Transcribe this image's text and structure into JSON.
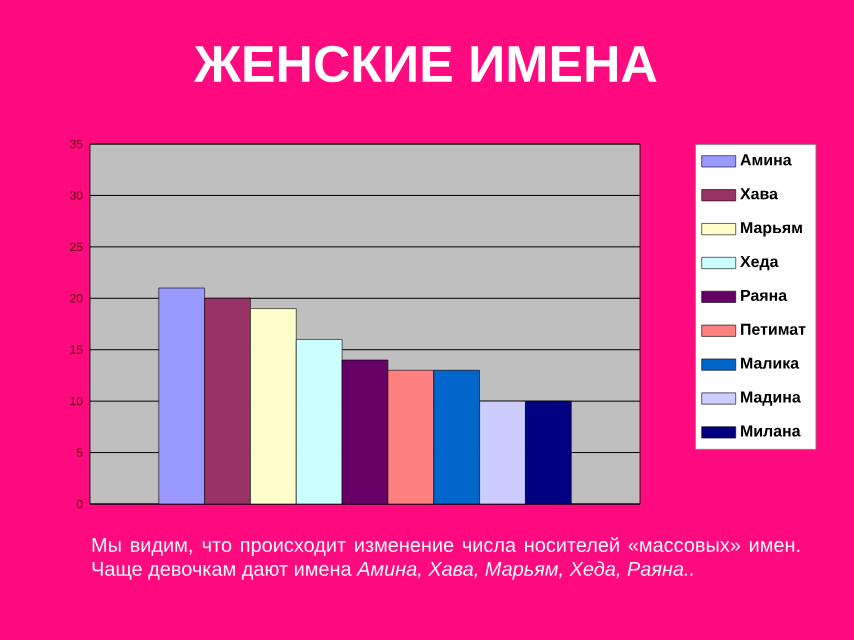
{
  "chart_data": {
    "type": "bar",
    "title": "ЖЕНСКИЕ  ИМЕНА",
    "categories": [
      null
    ],
    "series": [
      {
        "name": "Амина",
        "color": "#9999ff",
        "values": [
          21
        ]
      },
      {
        "name": "Хава",
        "color": "#993366",
        "values": [
          20
        ]
      },
      {
        "name": "Марьям",
        "color": "#ffffcc",
        "values": [
          19
        ]
      },
      {
        "name": "Хеда",
        "color": "#ccffff",
        "values": [
          16
        ]
      },
      {
        "name": "Раяна",
        "color": "#660066",
        "values": [
          14
        ]
      },
      {
        "name": "Петимат",
        "color": "#ff8080",
        "values": [
          13
        ]
      },
      {
        "name": "Малика",
        "color": "#0066cc",
        "values": [
          13
        ]
      },
      {
        "name": "Мадина",
        "color": "#ccccff",
        "values": [
          10
        ]
      },
      {
        "name": "Милана",
        "color": "#000080",
        "values": [
          10
        ]
      }
    ],
    "ylim": [
      0,
      35
    ],
    "yticks": [
      0,
      5,
      10,
      15,
      20,
      25,
      30,
      35
    ],
    "grid": "y",
    "legend": "right",
    "annotations": [
      "Мы видим, что происходит изменение числа носителей «массовых» имен. Чаще девочкам дают имена *Амина, Хава, Марьям, Хеда, Раяна..*"
    ]
  }
}
